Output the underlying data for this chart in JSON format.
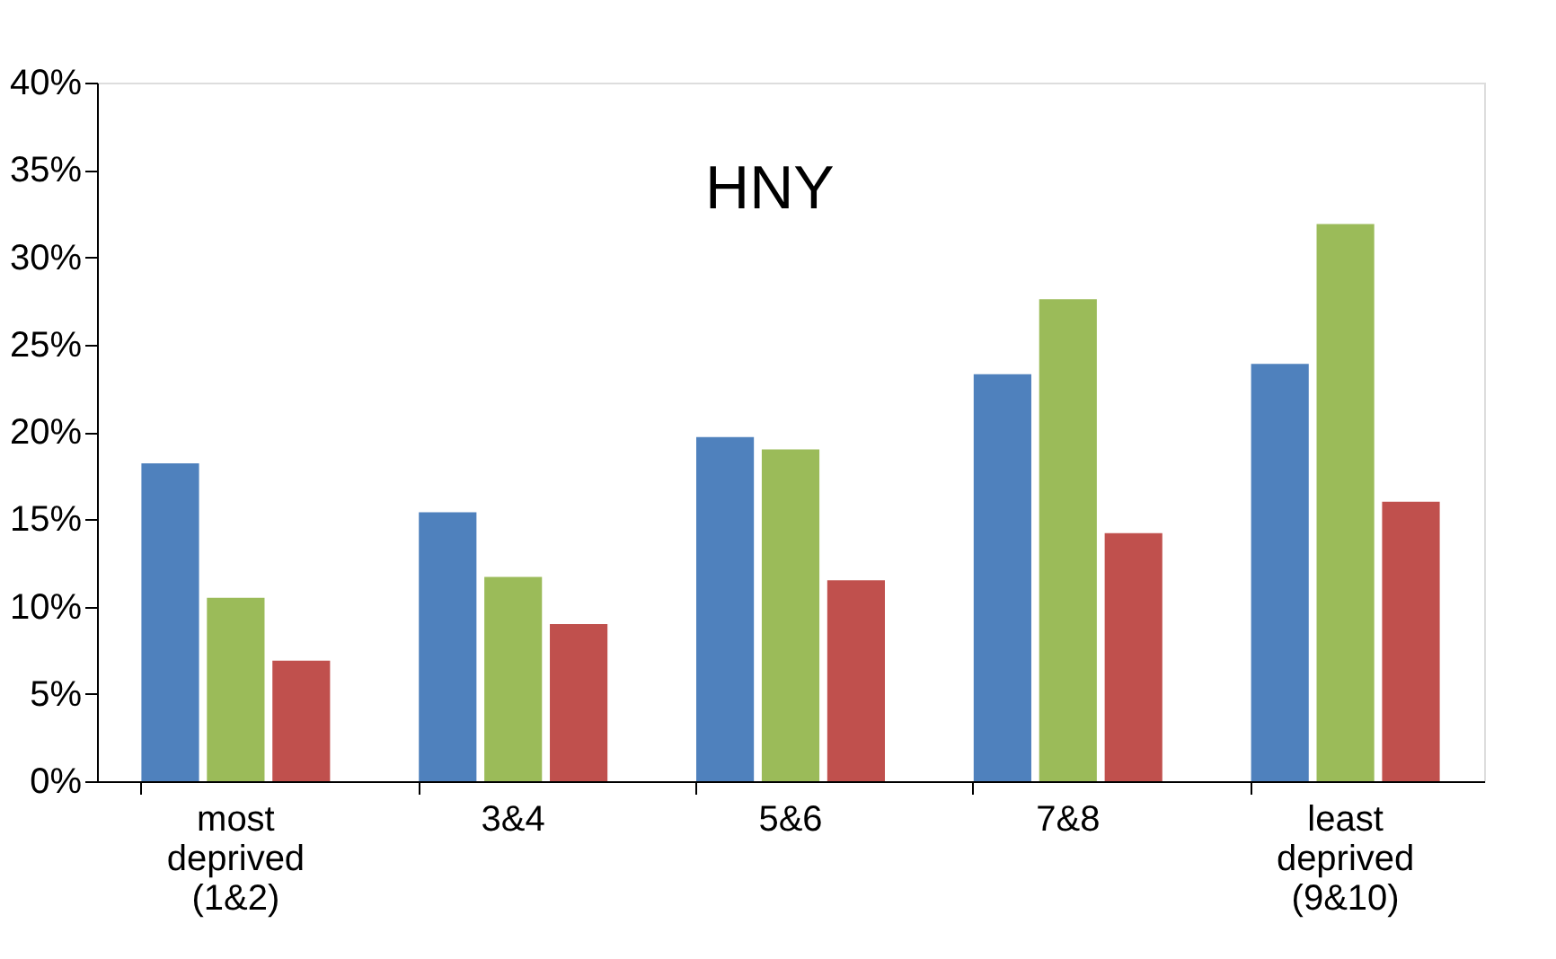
{
  "chart_data": {
    "type": "bar",
    "title": "HNY",
    "categories": [
      "most deprived (1&2)",
      "3&4",
      "5&6",
      "7&8",
      "least deprived (9&10)"
    ],
    "series": [
      {
        "color": "#4f81bd",
        "values": [
          18.2,
          15.4,
          19.7,
          23.3,
          23.9
        ]
      },
      {
        "color": "#9bbb59",
        "values": [
          10.5,
          11.7,
          19.0,
          27.6,
          31.9
        ]
      },
      {
        "color": "#c0504d",
        "values": [
          6.9,
          9.0,
          11.5,
          14.2,
          16.0
        ]
      }
    ],
    "ylim": [
      0,
      40
    ],
    "yticks": [
      {
        "value": 0,
        "label": "0%"
      },
      {
        "value": 5,
        "label": "5%"
      },
      {
        "value": 10,
        "label": "10%"
      },
      {
        "value": 15,
        "label": "15%"
      },
      {
        "value": 20,
        "label": "20%"
      },
      {
        "value": 25,
        "label": "25%"
      },
      {
        "value": 30,
        "label": "30%"
      },
      {
        "value": 35,
        "label": "35%"
      },
      {
        "value": 40,
        "label": "40%"
      }
    ],
    "grid": false,
    "legend": false
  }
}
